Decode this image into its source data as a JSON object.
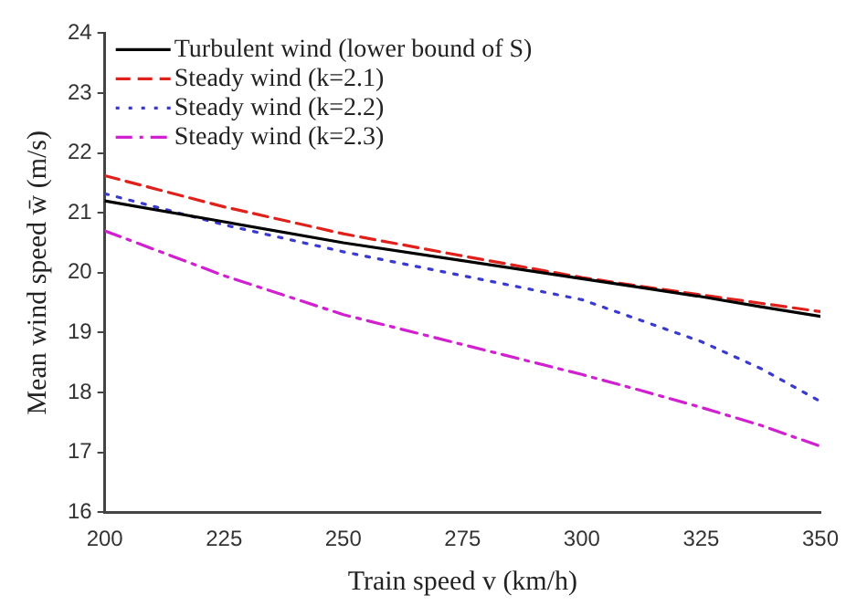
{
  "chart_data": {
    "type": "line",
    "xlabel": "Train speed v (km/h)",
    "ylabel": "Mean wind speed w̄ (m/s)",
    "x": [
      200,
      225,
      250,
      275,
      300,
      312.5,
      325,
      337.5,
      350
    ],
    "series": [
      {
        "name": "Turbulent wind (lower bound of S)",
        "color": "#000000",
        "line_style": "solid",
        "values": [
          21.2,
          20.85,
          20.5,
          20.2,
          19.9,
          19.75,
          19.6,
          19.43,
          19.27
        ]
      },
      {
        "name": "Steady wind (k=2.1)",
        "color": "#e0201b",
        "line_style": "dashed",
        "values": [
          21.62,
          21.1,
          20.65,
          20.28,
          19.92,
          19.77,
          19.63,
          19.49,
          19.35
        ]
      },
      {
        "name": "Steady wind (k=2.2)",
        "color": "#3a3ad0",
        "line_style": "dotted",
        "values": [
          21.32,
          20.8,
          20.35,
          19.95,
          19.55,
          19.2,
          18.85,
          18.4,
          17.85
        ]
      },
      {
        "name": "Steady wind (k=2.3)",
        "color": "#d020d0",
        "line_style": "dashdot",
        "values": [
          20.7,
          19.95,
          19.3,
          18.8,
          18.3,
          18.03,
          17.75,
          17.45,
          17.1
        ]
      }
    ],
    "xlim": [
      200,
      350
    ],
    "xticks": [
      200,
      225,
      250,
      275,
      300,
      325,
      350
    ],
    "ylim": [
      16,
      24
    ],
    "yticks": [
      16,
      17,
      18,
      19,
      20,
      21,
      22,
      23,
      24
    ],
    "grid": false,
    "legend": "top left",
    "marker": "none"
  }
}
